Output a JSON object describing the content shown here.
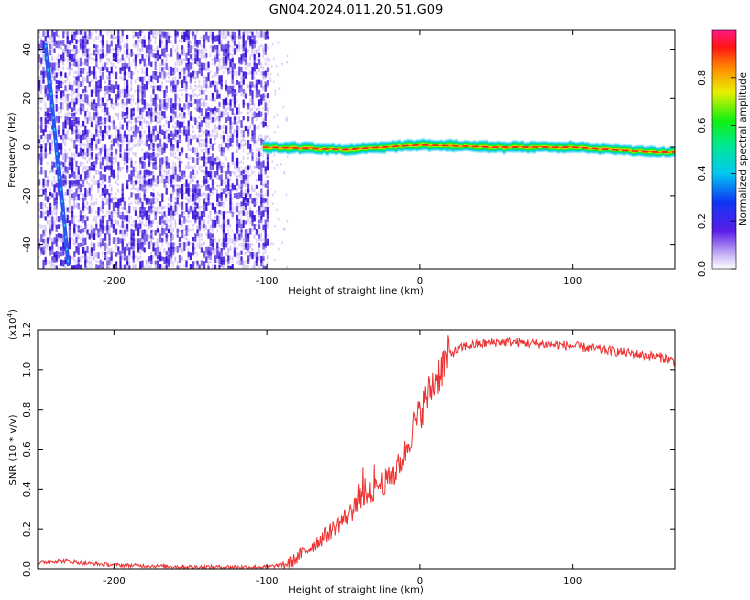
{
  "title": "GN04.2024.011.20.51.G09",
  "colors": {
    "snr_line": "#ee3333",
    "dot_strong": "#3a10d8",
    "dot_weak": "#b9a2f2",
    "track": "#2a55f0"
  },
  "chart_data": [
    {
      "type": "heatmap",
      "xlabel": "Height of straight line (km)",
      "ylabel": "Frequency (Hz)",
      "xlim": [
        -250,
        167
      ],
      "ylim": [
        -50,
        48
      ],
      "xticks": [
        -200,
        -100,
        0,
        100
      ],
      "xtick_labels": [
        "-200",
        "-100",
        "0",
        "100"
      ],
      "yticks": [
        -40,
        -20,
        0,
        20,
        40
      ],
      "ytick_labels": [
        "-40",
        "-20",
        "0",
        "20",
        "40"
      ],
      "noise_region_x": [
        -250,
        -100
      ],
      "track": {
        "x_start": -245,
        "y_start": 42,
        "x_end": -230,
        "y_end": -48
      },
      "signal_band": {
        "x_start": -103,
        "x_end": 167,
        "center_hz": [
          {
            "x": -100,
            "y": 0
          },
          {
            "x": -50,
            "y": -1
          },
          {
            "x": 0,
            "y": 1
          },
          {
            "x": 50,
            "y": 0
          },
          {
            "x": 100,
            "y": 0
          },
          {
            "x": 150,
            "y": -2
          },
          {
            "x": 167,
            "y": -2
          }
        ]
      },
      "colorbar": {
        "label": "Normalized spectral amplitude",
        "range": [
          0.0,
          1.0
        ],
        "ticks": [
          0.0,
          0.2,
          0.4,
          0.6,
          0.8
        ],
        "tick_labels": [
          "0.0",
          "0.2",
          "0.4",
          "0.6",
          "0.8"
        ]
      }
    },
    {
      "type": "line",
      "xlabel": "Height of straight line (km)",
      "ylabel": "SNR (10 * v/v)",
      "multiplier_label": "(x10",
      "multiplier_exponent": "4",
      "multiplier_close": ")",
      "xlim": [
        -250,
        167
      ],
      "ylim": [
        0.0,
        1.2
      ],
      "xticks": [
        -200,
        -100,
        0,
        100
      ],
      "xtick_labels": [
        "-200",
        "-100",
        "0",
        "100"
      ],
      "yticks": [
        0.0,
        0.2,
        0.4,
        0.6,
        0.8,
        1.0,
        1.2
      ],
      "ytick_labels": [
        "0.0",
        "0.2",
        "0.4",
        "0.6",
        "0.8",
        "1.0",
        "1.2"
      ],
      "series": [
        {
          "x": [
            -250,
            -240,
            -230,
            -220,
            -200,
            -150,
            -100,
            -90,
            -85,
            -80,
            -70,
            -60,
            -50,
            -40,
            -35,
            -30,
            -25,
            -20,
            -15,
            -10,
            -5,
            0,
            5,
            10,
            15,
            20,
            30,
            40,
            50,
            60,
            80,
            100,
            120,
            140,
            160,
            167
          ],
          "y": [
            0.03,
            0.04,
            0.04,
            0.03,
            0.02,
            0.01,
            0.01,
            0.02,
            0.03,
            0.06,
            0.12,
            0.18,
            0.25,
            0.32,
            0.36,
            0.4,
            0.43,
            0.45,
            0.5,
            0.58,
            0.7,
            0.78,
            0.87,
            0.95,
            1.02,
            1.08,
            1.12,
            1.13,
            1.14,
            1.14,
            1.13,
            1.12,
            1.1,
            1.08,
            1.06,
            1.04
          ]
        }
      ]
    }
  ]
}
